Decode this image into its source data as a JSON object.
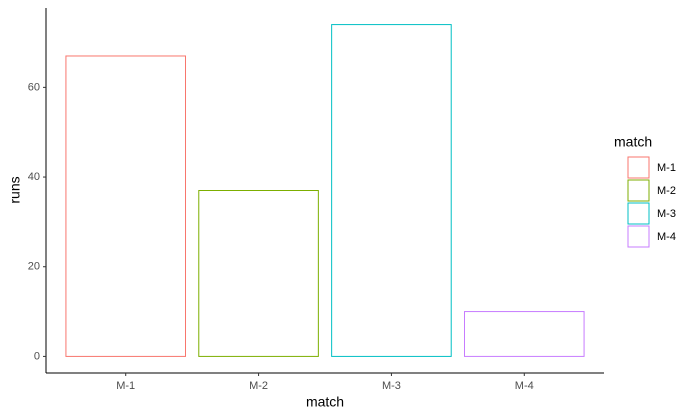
{
  "chart_data": {
    "type": "bar",
    "categories": [
      "M-1",
      "M-2",
      "M-3",
      "M-4"
    ],
    "values": [
      67,
      37,
      74,
      10
    ],
    "colors": [
      "#F8766D",
      "#7CAE00",
      "#00BFC4",
      "#C77CFF"
    ],
    "x_label": "match",
    "y_label": "runs",
    "ylim": [
      -3.7,
      77.7
    ],
    "yticks": [
      0,
      20,
      40,
      60
    ],
    "legend_title": "match",
    "legend_position": "right",
    "grid": false
  }
}
